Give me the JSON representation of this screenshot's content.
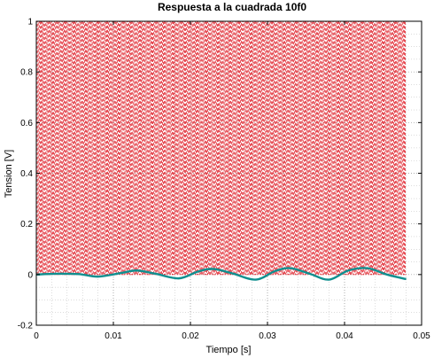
{
  "chart_data": {
    "type": "line",
    "title": "Respuesta a la cuadrada 10f0",
    "xlabel": "Tiempo [s]",
    "ylabel": "Tension [V]",
    "xlim": [
      0,
      0.05
    ],
    "ylim": [
      -0.2,
      1
    ],
    "x_ticks": [
      0,
      0.01,
      0.02,
      0.03,
      0.04,
      0.05
    ],
    "x_tick_labels": [
      "0",
      "0.01",
      "0.02",
      "0.03",
      "0.04",
      "0.05"
    ],
    "y_ticks": [
      -0.2,
      0,
      0.2,
      0.4,
      0.6,
      0.8,
      1
    ],
    "y_tick_labels": [
      "-0.2",
      "0",
      "0.2",
      "0.4",
      "0.6",
      "0.8",
      "1"
    ],
    "grid": true,
    "minor_grid": true,
    "colors": {
      "input": "#e0202a",
      "output": "#0f8f8f",
      "grid": "#9a9a9a"
    },
    "series": [
      {
        "role": "input",
        "style": "dashed",
        "kind": "square_wave",
        "frequency_hz": 4000,
        "low": 0,
        "high": 1,
        "x_start": 0,
        "x_end": 0.048
      },
      {
        "role": "output",
        "style": "solid",
        "x": [
          0,
          0.0025,
          0.0055,
          0.008,
          0.011,
          0.013,
          0.0155,
          0.0185,
          0.021,
          0.023,
          0.0255,
          0.0285,
          0.031,
          0.033,
          0.0355,
          0.038,
          0.0405,
          0.043,
          0.0455,
          0.048
        ],
        "y": [
          0.0,
          0.003,
          0.002,
          -0.008,
          0.006,
          0.016,
          0.003,
          -0.015,
          0.012,
          0.022,
          0.004,
          -0.02,
          0.014,
          0.025,
          0.003,
          -0.02,
          0.016,
          0.025,
          0.0,
          -0.018
        ]
      }
    ]
  }
}
